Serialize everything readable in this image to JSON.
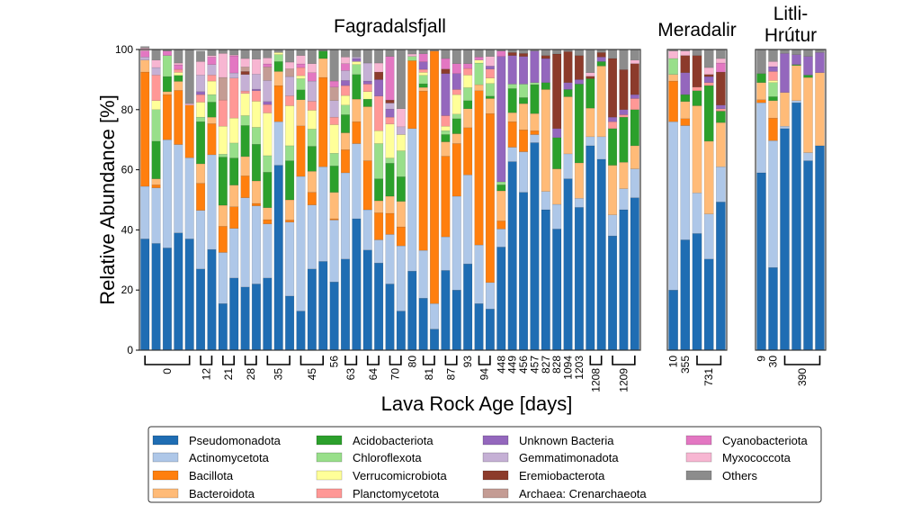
{
  "chart_data": {
    "type": "bar",
    "stacked": true,
    "ylabel": "Relative Abundance [%]",
    "xlabel": "Lava Rock Age [days]",
    "ylim": [
      0,
      100
    ],
    "yticks": [
      0,
      20,
      40,
      60,
      80,
      100
    ],
    "grid": false,
    "legend_placement": "bottom",
    "series": [
      {
        "name": "Pseudomonadota",
        "color": "#1f6db3"
      },
      {
        "name": "Actinomycetota",
        "color": "#aec7e8"
      },
      {
        "name": "Bacillota",
        "color": "#ff7f0e"
      },
      {
        "name": "Bacteroidota",
        "color": "#ffbb78"
      },
      {
        "name": "Acidobacteriota",
        "color": "#2ca02c"
      },
      {
        "name": "Chloroflexota",
        "color": "#98df8a"
      },
      {
        "name": "Verrucomicrobiota",
        "color": "#ffff99"
      },
      {
        "name": "Planctomycetota",
        "color": "#ff9896"
      },
      {
        "name": "Unknown Bacteria",
        "color": "#9467bd"
      },
      {
        "name": "Gemmatimonadota",
        "color": "#c5b0d5"
      },
      {
        "name": "Eremiobacterota",
        "color": "#8c3b2b"
      },
      {
        "name": "Archaea: Crenarchaeota",
        "color": "#c49c94"
      },
      {
        "name": "Cyanobacteriota",
        "color": "#e377c2"
      },
      {
        "name": "Myxococcota",
        "color": "#f7b6d2"
      },
      {
        "name": "Others",
        "color": "#8c8c8c"
      }
    ],
    "panels": [
      {
        "title": "Fagradalsfjall",
        "groups": [
          {
            "label": "0",
            "n": 5
          },
          {
            "label": "12",
            "n": 2
          },
          {
            "label": "21",
            "n": 2
          },
          {
            "label": "28",
            "n": 2
          },
          {
            "label": "35",
            "n": 3
          },
          {
            "label": "45",
            "n": 3
          },
          {
            "label": "56",
            "n": 1
          },
          {
            "label": "63",
            "n": 2
          },
          {
            "label": "64",
            "n": 2
          },
          {
            "label": "70",
            "n": 2
          },
          {
            "label": "80",
            "n": 1
          },
          {
            "label": "81",
            "n": 2
          },
          {
            "label": "87",
            "n": 2
          },
          {
            "label": "93",
            "n": 1
          },
          {
            "label": "94",
            "n": 2
          },
          {
            "label": "448",
            "n": 1
          },
          {
            "label": "449",
            "n": 1
          },
          {
            "label": "456",
            "n": 1
          },
          {
            "label": "457",
            "n": 1
          },
          {
            "label": "827",
            "n": 1
          },
          {
            "label": "828",
            "n": 1
          },
          {
            "label": "1094",
            "n": 1
          },
          {
            "label": "1203",
            "n": 1
          },
          {
            "label": "1208",
            "n": 2
          },
          {
            "label": "1209",
            "n": 3
          }
        ],
        "bars": [
          [
            37,
            17.5,
            38,
            4,
            0,
            0,
            0,
            0,
            0,
            1,
            0,
            0,
            2,
            1,
            0.5
          ],
          [
            35.5,
            18.5,
            1,
            2,
            12.5,
            10.5,
            3,
            8.5,
            0,
            2.5,
            0,
            0,
            0,
            2.5,
            3.5
          ],
          [
            34,
            36,
            15,
            1,
            5,
            7,
            0,
            0,
            0,
            0,
            0,
            0,
            1.5,
            0,
            0.5
          ],
          [
            39,
            29.4,
            18,
            3,
            2,
            0,
            1,
            1,
            0,
            0,
            0,
            0,
            1.5,
            0.6,
            4.5
          ],
          [
            37,
            27,
            17.5,
            0,
            0,
            0,
            0,
            0,
            0,
            0,
            0,
            0,
            0,
            0.5,
            18
          ],
          [
            27,
            19.5,
            9,
            6.5,
            14,
            1.5,
            5,
            2.5,
            1,
            5.5,
            0,
            0,
            0,
            4.5,
            3.5
          ],
          [
            33.5,
            31.5,
            10.3,
            2.2,
            5,
            2.5,
            4.5,
            2,
            0,
            3.5,
            0,
            0,
            2.5,
            0.5,
            2
          ],
          [
            15.5,
            17,
            8.7,
            7,
            16,
            1,
            9.3,
            8.7,
            0,
            0,
            0,
            7.5,
            0,
            8,
            1.3
          ],
          [
            24,
            16.5,
            7.2,
            7.2,
            9,
            5,
            8.3,
            13.3,
            0,
            1.7,
            0,
            0,
            5.7,
            0.3,
            1.8
          ],
          [
            21,
            29.7,
            7.3,
            6.4,
            10.3,
            3.3,
            7.4,
            0.8,
            0,
            5.5,
            1,
            1.5,
            0,
            2.8,
            3
          ],
          [
            22,
            26,
            0.8,
            7.5,
            12.2,
            5.6,
            8.7,
            3.5,
            0.5,
            5,
            0,
            0,
            0,
            5,
            3.2
          ],
          [
            24,
            18,
            1.4,
            4,
            11.8,
            5.5,
            14.2,
            2.8,
            1,
            7,
            0,
            4.5,
            1,
            2,
            2.8
          ],
          [
            61.5,
            14.5,
            12,
            4.7,
            3.3,
            2.3,
            0.7,
            0,
            0,
            0,
            0,
            0,
            0,
            0,
            1
          ],
          [
            18,
            24.6,
            0.7,
            6.7,
            13,
            5,
            13.3,
            3.3,
            0,
            6.4,
            0,
            2.6,
            0,
            2.2,
            4.2
          ],
          [
            13,
            44.8,
            16.8,
            8.7,
            3.3,
            3.7,
            1,
            2.7,
            0,
            0,
            0,
            0,
            1.2,
            2.8,
            2
          ],
          [
            27,
            21.3,
            4.2,
            7,
            8.3,
            5.7,
            6.3,
            3,
            0,
            6.7,
            0,
            0,
            2.8,
            3,
            4.7
          ],
          [
            29.5,
            31.5,
            29.7,
            6.3,
            2.5,
            0,
            0,
            0,
            0,
            0,
            0,
            0,
            0,
            0,
            0.5
          ],
          [
            22.7,
            20.6,
            0.4,
            8.8,
            8.8,
            4.2,
            9.5,
            2.5,
            0,
            5.5,
            0,
            4.5,
            2,
            0,
            10.5
          ],
          [
            30.3,
            28.7,
            7.7,
            5.6,
            6,
            3.2,
            3.2,
            3.3,
            1.7,
            3.3,
            0,
            0,
            2.3,
            2.2,
            2.5
          ],
          [
            43.7,
            25,
            7.3,
            7.5,
            8.2,
            3.3,
            1,
            0,
            1,
            0.5,
            0,
            0,
            0,
            0,
            2.5
          ],
          [
            33.3,
            13.4,
            16.3,
            18,
            2.5,
            0,
            2.5,
            2.5,
            1,
            6,
            0,
            0,
            0,
            0,
            4.5
          ],
          [
            29,
            7.7,
            9,
            4,
            7.3,
            11.7,
            4.3,
            11.5,
            5.5,
            0,
            2.5,
            0,
            0,
            3,
            4.5
          ],
          [
            22,
            16.5,
            7,
            5.7,
            11,
            1.7,
            11.3,
            2.3,
            2.7,
            2,
            1,
            0,
            14.5,
            0,
            2.3
          ],
          [
            13,
            21.7,
            6.3,
            8.5,
            8.2,
            8.6,
            5.4,
            0,
            0,
            2.6,
            0,
            0,
            0,
            6,
            19.7
          ],
          [
            26.3,
            47.4,
            22.6,
            0,
            0,
            1.4,
            0,
            0,
            0,
            0,
            0,
            0,
            0,
            0.8,
            1.5
          ],
          [
            17.3,
            15.9,
            53,
            1.2,
            1.2,
            2.8,
            1,
            1,
            2.5,
            0,
            0,
            0,
            2.7,
            0,
            1.4
          ],
          [
            7,
            8.5,
            84,
            0,
            0,
            0,
            0,
            0,
            0,
            0,
            0,
            0,
            0,
            0,
            0.5
          ],
          [
            26.5,
            11.2,
            26.8,
            4.8,
            2.4,
            1.3,
            1.5,
            3.5,
            14,
            0,
            1.5,
            0,
            3.5,
            0,
            3
          ],
          [
            20,
            31.2,
            17.5,
            3.3,
            5,
            1.5,
            6.5,
            1.7,
            5.3,
            0,
            0,
            0,
            3.3,
            0,
            4.7
          ],
          [
            28.7,
            29.6,
            15.7,
            6.3,
            2.7,
            4.3,
            4.2,
            2.2,
            0,
            0,
            0,
            0,
            1.6,
            0,
            4.7
          ],
          [
            15.5,
            19.5,
            51.3,
            2,
            0,
            7.2,
            1,
            0,
            0,
            0,
            0,
            0,
            1,
            0,
            2.5
          ],
          [
            13.7,
            8.8,
            56.2,
            5,
            0.8,
            4.2,
            1.8,
            3,
            1,
            0,
            0,
            0,
            0,
            3.2,
            2.3
          ],
          [
            34.3,
            6,
            2.7,
            10,
            2,
            1,
            0,
            0,
            41.7,
            0,
            0,
            0,
            1.8,
            0,
            0.5
          ],
          [
            62.7,
            4.8,
            8.5,
            3,
            8,
            1.5,
            0,
            0,
            9.5,
            0,
            1,
            0,
            0,
            0,
            1
          ],
          [
            52.5,
            13.5,
            7.3,
            8.7,
            2,
            4.5,
            0,
            0,
            9.2,
            0,
            1,
            0,
            0,
            0,
            1.3
          ],
          [
            69,
            2.7,
            1.3,
            5.7,
            9.6,
            0.7,
            0,
            0,
            10.5,
            0,
            0,
            0,
            0,
            0,
            0.5
          ],
          [
            46.7,
            6.1,
            0,
            33.9,
            2.3,
            0,
            0,
            0,
            8,
            0,
            1,
            0,
            0,
            0,
            2
          ],
          [
            40.3,
            8.2,
            0,
            11.8,
            10.4,
            0,
            0,
            0,
            3,
            0,
            24.8,
            0,
            0,
            0,
            1.5
          ],
          [
            57,
            8.3,
            0,
            19,
            2.4,
            0,
            0,
            0,
            2.3,
            0,
            10.3,
            0,
            0,
            0,
            0.7
          ],
          [
            47.5,
            3,
            0,
            11.8,
            26.2,
            0,
            0,
            0,
            1.5,
            0,
            8,
            0,
            0,
            0,
            2
          ],
          [
            68,
            3,
            0,
            9.5,
            9.8,
            0,
            0,
            0,
            0,
            0,
            0.8,
            0,
            0,
            1.2,
            7.7
          ],
          [
            63.5,
            7.5,
            0,
            23.5,
            1.5,
            0,
            0,
            0,
            1.5,
            0,
            1.5,
            0,
            0,
            0,
            1
          ],
          [
            38,
            7,
            0,
            16.5,
            12.2,
            0,
            0,
            2.3,
            1.5,
            0,
            19.5,
            0,
            0,
            0,
            3
          ],
          [
            46.7,
            7,
            0,
            8.8,
            15,
            0,
            0,
            0.8,
            1.7,
            0,
            13.3,
            0,
            0,
            0,
            6.7
          ],
          [
            50.7,
            9.6,
            0,
            7.7,
            12,
            0,
            0,
            3.7,
            1.3,
            0,
            10.3,
            0,
            0,
            1.2,
            3.5
          ]
        ]
      },
      {
        "title": "Meradalir",
        "groups": [
          {
            "label": "10",
            "n": 1
          },
          {
            "label": "355",
            "n": 1
          },
          {
            "label": "731",
            "n": 3
          }
        ],
        "bars": [
          [
            20,
            56,
            13.5,
            2.2,
            0,
            5.3,
            0,
            0,
            0,
            0,
            0,
            0,
            0,
            2.5,
            0.5
          ],
          [
            36.7,
            38,
            2.3,
            5.7,
            2.3,
            0,
            0,
            0,
            7.3,
            0,
            5.7,
            0,
            0,
            1.5,
            0.5
          ],
          [
            38.8,
            13.5,
            0,
            29,
            5,
            0,
            0,
            1.2,
            0,
            0,
            10.5,
            0,
            0,
            0,
            2
          ],
          [
            30.3,
            15,
            0,
            24.2,
            18.5,
            0,
            0,
            1,
            2,
            0,
            0.7,
            0,
            0,
            2.3,
            6
          ],
          [
            49.3,
            11.7,
            0,
            14.7,
            3.8,
            0,
            0,
            0.8,
            1.2,
            0,
            11,
            0,
            3,
            1.5,
            3
          ]
        ]
      },
      {
        "title": "Litli-\nHrútur",
        "title_lines": [
          "Litli-",
          "Hrútur"
        ],
        "groups": [
          {
            "label": "9",
            "n": 1
          },
          {
            "label": "30",
            "n": 1
          },
          {
            "label": "390",
            "n": 4
          }
        ],
        "bars": [
          [
            59,
            23.3,
            1,
            5.7,
            3,
            0,
            0,
            0,
            0,
            0,
            0,
            0,
            0,
            0,
            8
          ],
          [
            27.5,
            42.2,
            7.5,
            5.8,
            1.3,
            4.7,
            0.7,
            3,
            1.6,
            0,
            0,
            0,
            0,
            1.7,
            4
          ],
          [
            73.7,
            0.8,
            0,
            11.2,
            0,
            0,
            0,
            0,
            13,
            0,
            0,
            0,
            0,
            0,
            1.3
          ],
          [
            82.3,
            0.7,
            0,
            11.7,
            0.3,
            0,
            0,
            0,
            3.3,
            0,
            0,
            0,
            0,
            0,
            1.7
          ],
          [
            63,
            2.7,
            0,
            25,
            0.8,
            0,
            0,
            0,
            6.2,
            0,
            0,
            0,
            0,
            0,
            2.3
          ],
          [
            68,
            0,
            0,
            24.3,
            0,
            0,
            0,
            0,
            6.7,
            0,
            0,
            0,
            0,
            0,
            1
          ]
        ]
      }
    ]
  }
}
